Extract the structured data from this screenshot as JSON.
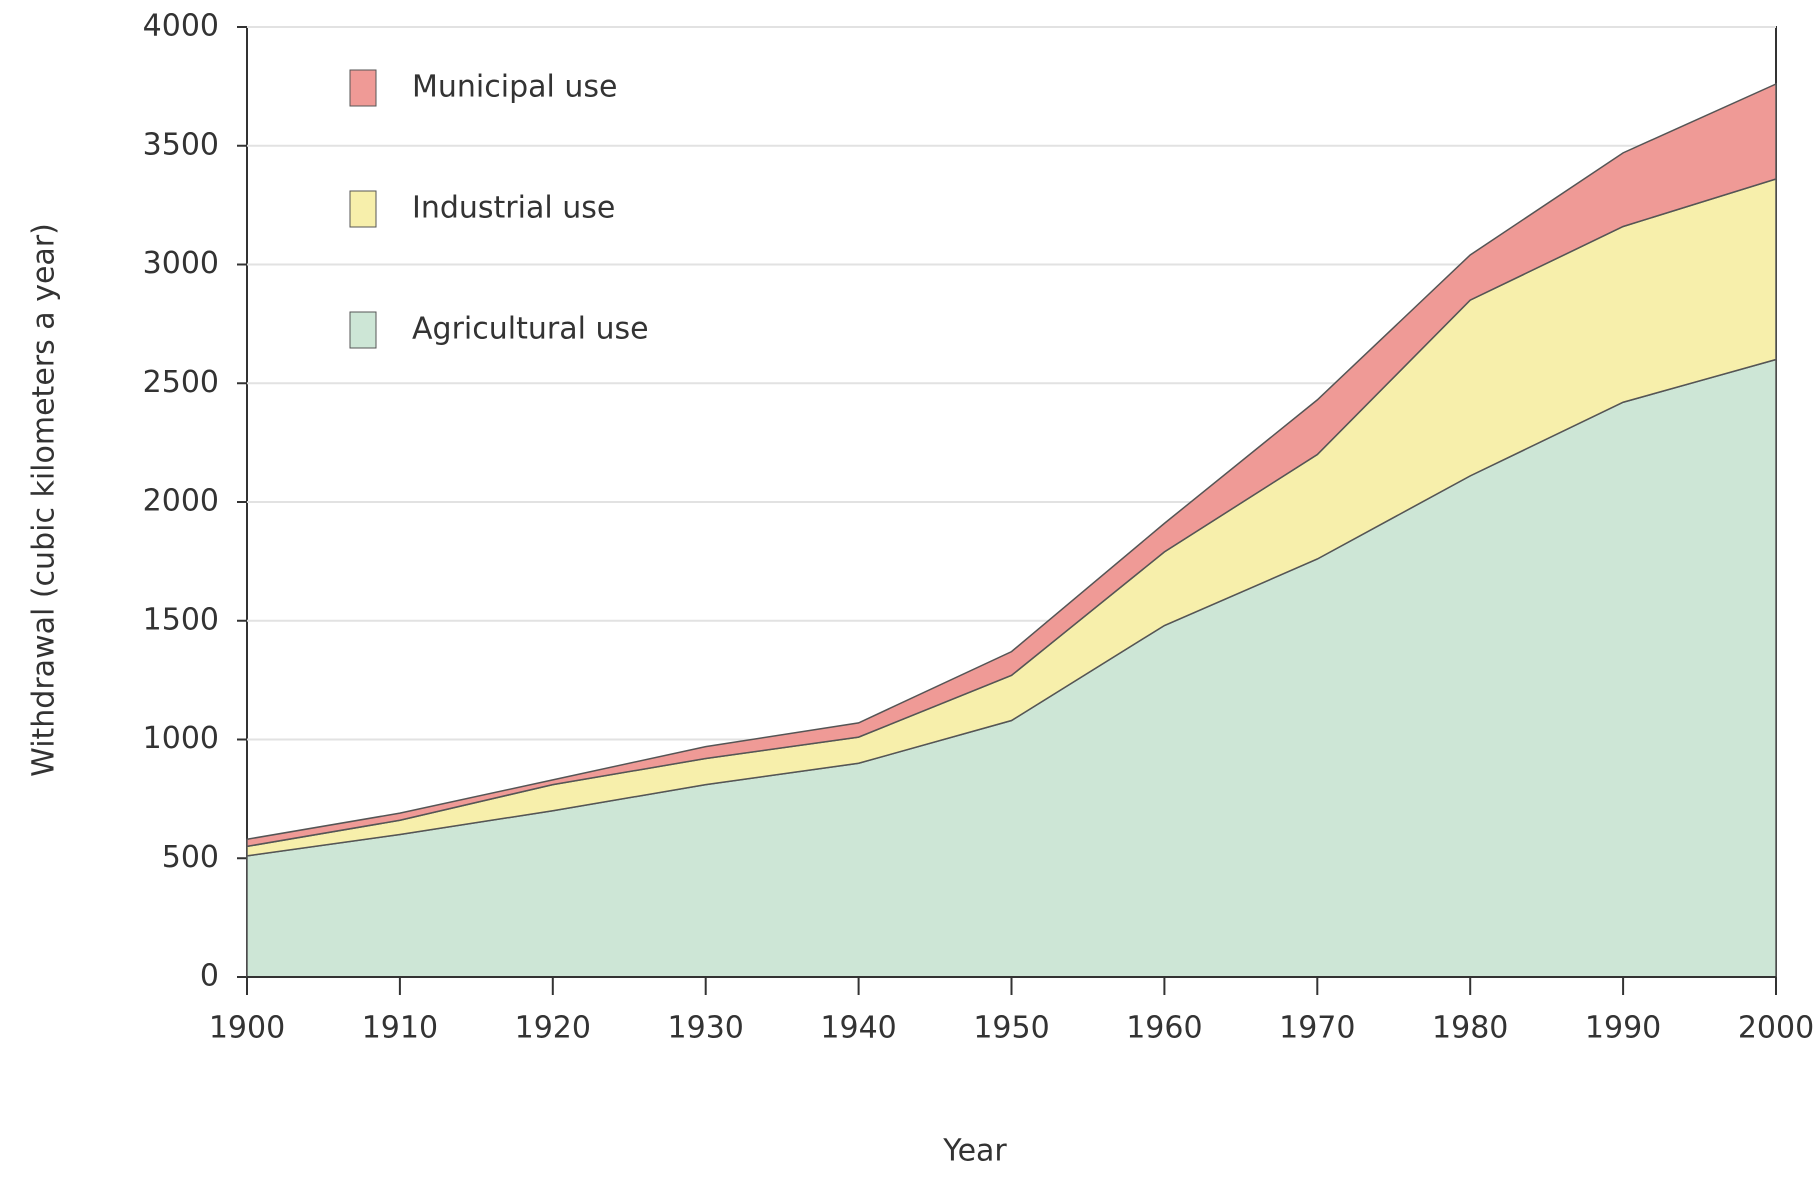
{
  "chart_data": {
    "type": "stacked-area",
    "x_label": "Year",
    "y_label": "Withdrawal (cubic kilometers a year)",
    "x": [
      1900,
      1910,
      1920,
      1930,
      1940,
      1950,
      1960,
      1970,
      1980,
      1990,
      2000
    ],
    "series": [
      {
        "name": "Agricultural use",
        "color": "#cde6d6",
        "values": [
          510,
          600,
          700,
          810,
          900,
          1080,
          1480,
          1760,
          2110,
          2420,
          2600
        ]
      },
      {
        "name": "Industrial use",
        "color": "#f7efab",
        "values": [
          40,
          60,
          110,
          110,
          110,
          190,
          310,
          440,
          740,
          740,
          760
        ]
      },
      {
        "name": "Municipal use",
        "color": "#ef9a96",
        "values": [
          30,
          30,
          20,
          50,
          60,
          100,
          120,
          230,
          190,
          310,
          400
        ]
      }
    ],
    "xlim": [
      1900,
      2000
    ],
    "xticks": [
      1900,
      1910,
      1920,
      1930,
      1940,
      1950,
      1960,
      1970,
      1980,
      1990,
      2000
    ],
    "ylim": [
      0,
      4000
    ],
    "yticks": [
      0,
      500,
      1000,
      1500,
      2000,
      2500,
      3000,
      3500,
      4000
    ],
    "grid": true,
    "legend": "upper left"
  }
}
